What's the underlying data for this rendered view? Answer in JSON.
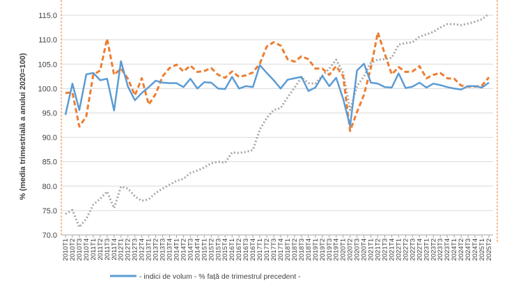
{
  "chart_data": {
    "type": "line",
    "ylabel": "% (media trimestrială a anului 2020=100)",
    "ylim": [
      70,
      117
    ],
    "yticks": [
      "70.0",
      "75.0",
      "80.0",
      "85.0",
      "90.0",
      "95.0",
      "100.0",
      "105.0",
      "110.0",
      "115.0"
    ],
    "grid": true,
    "legend_position": "bottom",
    "legend_text": "- indici de volum - % față de trimestrul precedent -",
    "x": [
      "2010T1",
      "2010T2",
      "2010T3",
      "2010T4",
      "2011T1",
      "2011T2",
      "2011T3",
      "2011T4",
      "2012T1",
      "2012T2",
      "2012T3",
      "2012T4",
      "2013T1",
      "2013T2",
      "2013T3",
      "2013T4",
      "2014T1",
      "2014T2",
      "2014T3",
      "2014T4",
      "2015T1",
      "2015T2",
      "2015T3",
      "2015T4",
      "2016T1",
      "2016T2",
      "2016T3",
      "2016T4",
      "2017T1",
      "2017T2",
      "2017T3",
      "2017T4",
      "2018T1",
      "2018T2",
      "2018T3",
      "2018T4",
      "2019T1",
      "2019T2",
      "2019T3",
      "2019T4",
      "2020T1",
      "2020T2",
      "2020T3",
      "2020T4",
      "2021T1",
      "2021T2",
      "2021T3",
      "2021T4",
      "2022T1",
      "2022T2",
      "2022T3",
      "2022T4",
      "2023T1",
      "2023T2",
      "2023T3",
      "2023T4",
      "2024T1",
      "2024T2",
      "2024T3",
      "2024T4",
      "2025T1",
      "2025T2"
    ],
    "series": [
      {
        "color": "#5b9bd5",
        "style": "solid",
        "values": [
          94.6,
          101.0,
          95.6,
          102.9,
          103.2,
          101.7,
          102.0,
          95.5,
          105.6,
          100.4,
          97.6,
          99.1,
          100.3,
          101.6,
          101.2,
          101.1,
          101.1,
          100.3,
          102.0,
          100.0,
          101.3,
          101.2,
          100.0,
          99.9,
          102.4,
          100.0,
          100.5,
          100.3,
          104.8,
          103.2,
          101.7,
          100.0,
          101.8,
          102.1,
          102.4,
          99.5,
          100.2,
          102.6,
          100.5,
          102.2,
          97.9,
          92.3,
          103.7,
          105.1,
          101.2,
          101.0,
          100.3,
          100.2,
          103.1,
          100.1,
          100.4,
          101.2,
          100.2,
          101.0,
          100.7,
          100.3,
          100.0,
          99.8,
          100.5,
          100.5,
          100.2,
          101.2
        ]
      },
      {
        "color": "#ed7d31",
        "style": "dashed",
        "values": [
          99.1,
          99.2,
          92.2,
          94.3,
          102.8,
          103.7,
          110.2,
          102.8,
          104.1,
          102.0,
          98.6,
          102.1,
          96.7,
          98.9,
          102.5,
          104.2,
          104.9,
          103.5,
          104.7,
          103.4,
          103.6,
          104.2,
          102.8,
          102.2,
          103.5,
          102.4,
          102.7,
          103.3,
          105.1,
          108.6,
          109.5,
          108.8,
          106.0,
          105.5,
          106.6,
          106.0,
          104.1,
          104.1,
          102.8,
          104.6,
          102.5,
          91.3,
          95.2,
          98.7,
          104.3,
          111.5,
          107.1,
          102.9,
          104.4,
          103.4,
          103.5,
          104.6,
          102.1,
          102.8,
          103.2,
          102.1,
          102.0,
          100.6,
          100.4,
          100.4,
          100.6,
          102.3
        ]
      },
      {
        "color": "#a6a6a6",
        "style": "dotted",
        "values": [
          74.3,
          75.1,
          71.6,
          73.3,
          76.2,
          77.4,
          78.9,
          75.5,
          79.9,
          79.5,
          77.9,
          77.0,
          77.3,
          78.6,
          79.5,
          80.3,
          81.1,
          81.5,
          82.7,
          83.2,
          83.8,
          84.7,
          85.0,
          84.8,
          86.9,
          86.8,
          87.0,
          87.4,
          91.6,
          94.0,
          95.6,
          96.0,
          98.2,
          100.2,
          102.3,
          101.1,
          101.0,
          102.6,
          104.1,
          105.9,
          103.2,
          95.6,
          100.5,
          102.5,
          105.3,
          105.9,
          106.0,
          106.3,
          109.0,
          109.3,
          109.5,
          110.6,
          111.1,
          111.6,
          112.5,
          113.2,
          113.2,
          113.0,
          113.3,
          113.7,
          114.2,
          115.3
        ]
      }
    ]
  }
}
